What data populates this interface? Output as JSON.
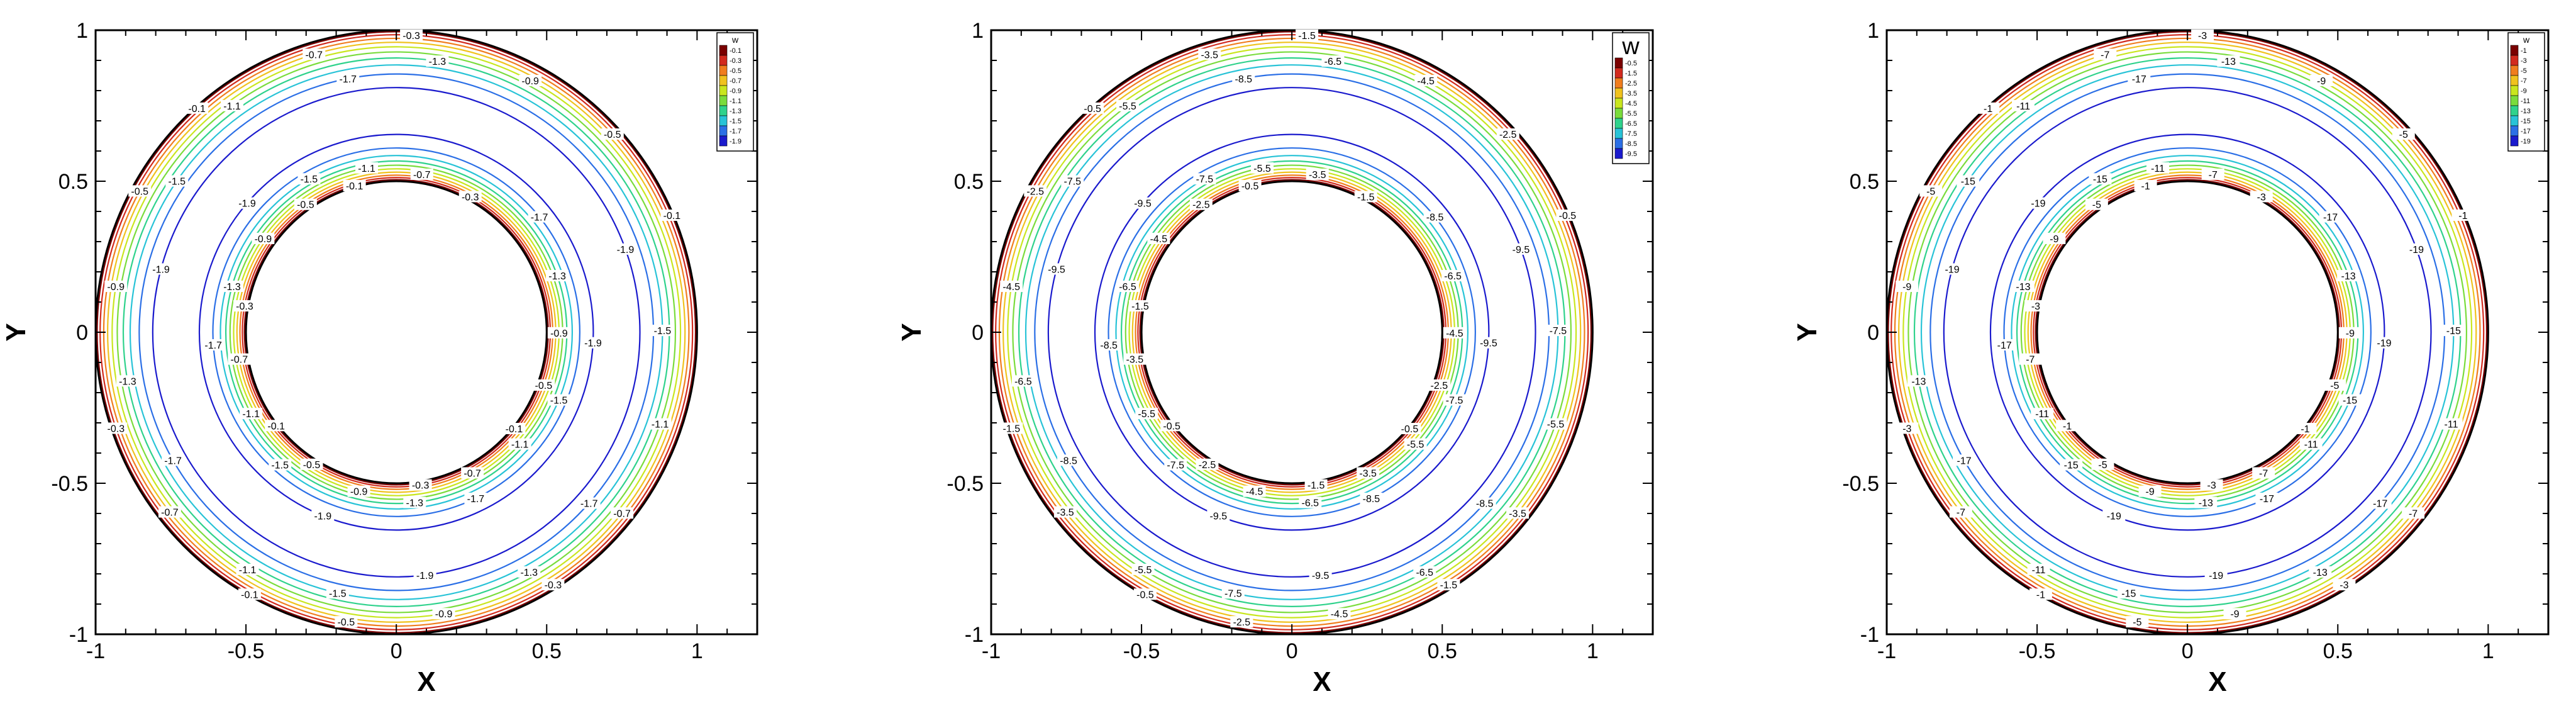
{
  "chart_data": [
    {
      "type": "contour",
      "xlabel": "X",
      "ylabel": "Y",
      "xlim": [
        -1,
        1.2
      ],
      "ylim": [
        -1,
        1
      ],
      "xticks": [
        "-1",
        "-0.5",
        "0",
        "0.5",
        "1"
      ],
      "yticks": [
        "-1",
        "-0.5",
        "0",
        "0.5",
        "1"
      ],
      "domain": {
        "inner_radius": 0.5,
        "outer_radius": 1.0
      },
      "legend": {
        "title": "w",
        "title_size": "small",
        "levels": [
          "-0.1",
          "-0.3",
          "-0.5",
          "-0.7",
          "-0.9",
          "-1.1",
          "-1.3",
          "-1.5",
          "-1.7",
          "-1.9"
        ]
      },
      "contours": [
        {
          "level": "-0.1",
          "r_out": 0.995,
          "r_in": 0.505
        },
        {
          "level": "-0.3",
          "r_out": 0.985,
          "r_in": 0.512
        },
        {
          "level": "-0.5",
          "r_out": 0.973,
          "r_in": 0.52
        },
        {
          "level": "-0.7",
          "r_out": 0.96,
          "r_in": 0.53
        },
        {
          "level": "-0.9",
          "r_out": 0.945,
          "r_in": 0.541
        },
        {
          "level": "-1.1",
          "r_out": 0.928,
          "r_in": 0.553
        },
        {
          "level": "-1.3",
          "r_out": 0.908,
          "r_in": 0.567
        },
        {
          "level": "-1.5",
          "r_out": 0.885,
          "r_in": 0.585
        },
        {
          "level": "-1.7",
          "r_out": 0.855,
          "r_in": 0.61
        },
        {
          "level": "-1.9",
          "r_out": 0.81,
          "r_in": 0.655
        }
      ]
    },
    {
      "type": "contour",
      "xlabel": "X",
      "ylabel": "Y",
      "xlim": [
        -1,
        1.2
      ],
      "ylim": [
        -1,
        1
      ],
      "xticks": [
        "-1",
        "-0.5",
        "0",
        "0.5",
        "1"
      ],
      "yticks": [
        "-1",
        "-0.5",
        "0",
        "0.5",
        "1"
      ],
      "domain": {
        "inner_radius": 0.5,
        "outer_radius": 1.0
      },
      "legend": {
        "title": "w",
        "title_size": "large",
        "levels": [
          "-0.5",
          "-1.5",
          "-2.5",
          "-3.5",
          "-4.5",
          "-5.5",
          "-6.5",
          "-7.5",
          "-8.5",
          "-9.5"
        ]
      },
      "contours": [
        {
          "level": "-0.5",
          "r_out": 0.995,
          "r_in": 0.505
        },
        {
          "level": "-1.5",
          "r_out": 0.985,
          "r_in": 0.512
        },
        {
          "level": "-2.5",
          "r_out": 0.973,
          "r_in": 0.52
        },
        {
          "level": "-3.5",
          "r_out": 0.96,
          "r_in": 0.53
        },
        {
          "level": "-4.5",
          "r_out": 0.945,
          "r_in": 0.541
        },
        {
          "level": "-5.5",
          "r_out": 0.928,
          "r_in": 0.553
        },
        {
          "level": "-6.5",
          "r_out": 0.908,
          "r_in": 0.567
        },
        {
          "level": "-7.5",
          "r_out": 0.885,
          "r_in": 0.585
        },
        {
          "level": "-8.5",
          "r_out": 0.855,
          "r_in": 0.61
        },
        {
          "level": "-9.5",
          "r_out": 0.81,
          "r_in": 0.655
        }
      ]
    },
    {
      "type": "contour",
      "xlabel": "X",
      "ylabel": "Y",
      "xlim": [
        -1,
        1.2
      ],
      "ylim": [
        -1,
        1
      ],
      "xticks": [
        "-1",
        "-0.5",
        "0",
        "0.5",
        "1"
      ],
      "yticks": [
        "-1",
        "-0.5",
        "0",
        "0.5",
        "1"
      ],
      "domain": {
        "inner_radius": 0.5,
        "outer_radius": 1.0
      },
      "legend": {
        "title": "w",
        "title_size": "small",
        "levels": [
          "-1",
          "-3",
          "-5",
          "-7",
          "-9",
          "-11",
          "-13",
          "-15",
          "-17",
          "-19"
        ]
      },
      "contours": [
        {
          "level": "-1",
          "r_out": 0.995,
          "r_in": 0.505
        },
        {
          "level": "-3",
          "r_out": 0.985,
          "r_in": 0.512
        },
        {
          "level": "-5",
          "r_out": 0.973,
          "r_in": 0.52
        },
        {
          "level": "-7",
          "r_out": 0.96,
          "r_in": 0.53
        },
        {
          "level": "-9",
          "r_out": 0.945,
          "r_in": 0.541
        },
        {
          "level": "-11",
          "r_out": 0.928,
          "r_in": 0.553
        },
        {
          "level": "-13",
          "r_out": 0.908,
          "r_in": 0.567
        },
        {
          "level": "-15",
          "r_out": 0.885,
          "r_in": 0.585
        },
        {
          "level": "-17",
          "r_out": 0.855,
          "r_in": 0.61
        },
        {
          "level": "-19",
          "r_out": 0.81,
          "r_in": 0.655
        }
      ]
    }
  ],
  "colors": {
    "levels": [
      "#7a0000",
      "#d22a1e",
      "#f07d1e",
      "#f0c21e",
      "#c9e61e",
      "#7adc3c",
      "#2fd28c",
      "#28c3d7",
      "#2b6fe6",
      "#1a1acd"
    ],
    "boundary": "#000000"
  }
}
